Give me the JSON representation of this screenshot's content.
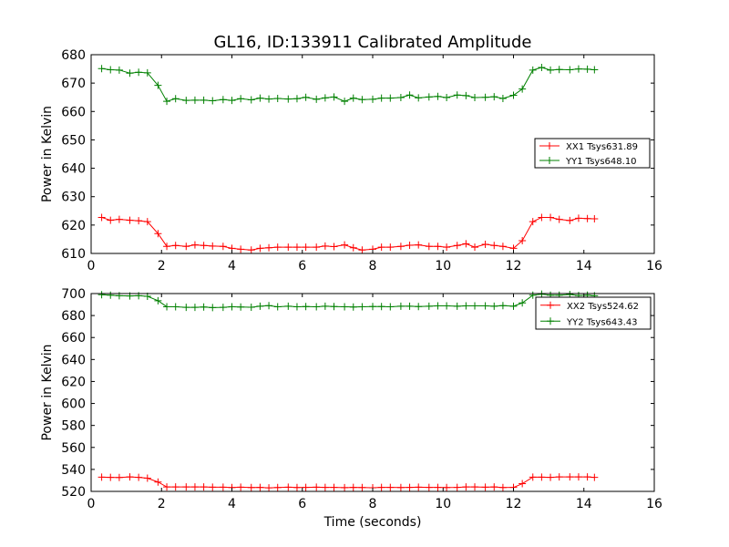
{
  "chart_data": [
    {
      "type": "line",
      "title": "GL16, ID:133911 Calibrated Amplitude",
      "xlabel": "",
      "ylabel": "Power in Kelvin",
      "xlim": [
        0,
        16
      ],
      "ylim": [
        610,
        680
      ],
      "xticks": [
        "0",
        "2",
        "4",
        "6",
        "8",
        "10",
        "12",
        "14",
        "16"
      ],
      "yticks": [
        "610",
        "620",
        "630",
        "640",
        "650",
        "660",
        "670",
        "680"
      ],
      "legend_position": "center-right",
      "x": [
        0.3,
        0.55,
        0.8,
        1.1,
        1.35,
        1.6,
        1.9,
        2.15,
        2.4,
        2.7,
        2.95,
        3.2,
        3.45,
        3.75,
        4.0,
        4.25,
        4.55,
        4.8,
        5.05,
        5.3,
        5.6,
        5.85,
        6.1,
        6.4,
        6.65,
        6.9,
        7.2,
        7.45,
        7.7,
        8.0,
        8.25,
        8.5,
        8.8,
        9.05,
        9.3,
        9.6,
        9.85,
        10.1,
        10.4,
        10.65,
        10.9,
        11.2,
        11.45,
        11.7,
        12.0,
        12.25,
        12.55,
        12.8,
        13.05,
        13.3,
        13.6,
        13.85,
        14.1,
        14.3
      ],
      "series": [
        {
          "name": "XX1 Tsys631.89",
          "color": "#ff0000",
          "values": [
            622.7,
            621.7,
            622.0,
            621.7,
            621.5,
            621.2,
            617.0,
            612.5,
            612.8,
            612.5,
            613.0,
            612.8,
            612.6,
            612.5,
            611.8,
            611.5,
            611.2,
            611.8,
            612.0,
            612.2,
            612.2,
            612.2,
            612.2,
            612.2,
            612.6,
            612.4,
            613.0,
            612.0,
            611.2,
            611.5,
            612.2,
            612.2,
            612.5,
            612.9,
            613.0,
            612.5,
            612.5,
            612.2,
            612.8,
            613.4,
            612.2,
            613.2,
            612.8,
            612.5,
            611.8,
            614.5,
            621.2,
            622.7,
            622.7,
            622.0,
            621.6,
            622.4,
            622.3,
            622.2
          ]
        },
        {
          "name": "YY1 Tsys648.10",
          "color": "#008000",
          "values": [
            675.1,
            674.7,
            674.6,
            673.5,
            673.8,
            673.6,
            669.2,
            663.6,
            664.5,
            663.9,
            664.0,
            664.0,
            663.8,
            664.2,
            663.9,
            664.5,
            664.1,
            664.7,
            664.4,
            664.6,
            664.4,
            664.5,
            665.0,
            664.3,
            664.8,
            665.1,
            663.6,
            664.7,
            664.2,
            664.3,
            664.7,
            664.7,
            664.9,
            665.8,
            664.8,
            665.1,
            665.3,
            664.9,
            665.8,
            665.6,
            664.9,
            665.0,
            665.2,
            664.6,
            665.7,
            667.9,
            674.6,
            675.5,
            674.6,
            674.8,
            674.7,
            675.0,
            674.9,
            674.7
          ]
        }
      ]
    },
    {
      "type": "line",
      "title": "",
      "xlabel": "Time (seconds)",
      "ylabel": "Power in Kelvin",
      "xlim": [
        0,
        16
      ],
      "ylim": [
        520,
        700
      ],
      "xticks": [
        "0",
        "2",
        "4",
        "6",
        "8",
        "10",
        "12",
        "14",
        "16"
      ],
      "yticks": [
        "520",
        "540",
        "560",
        "580",
        "600",
        "620",
        "640",
        "660",
        "680",
        "700"
      ],
      "legend_position": "top-right",
      "x": [
        0.3,
        0.55,
        0.8,
        1.1,
        1.35,
        1.6,
        1.9,
        2.15,
        2.4,
        2.7,
        2.95,
        3.2,
        3.45,
        3.75,
        4.0,
        4.25,
        4.55,
        4.8,
        5.05,
        5.3,
        5.6,
        5.85,
        6.1,
        6.4,
        6.65,
        6.9,
        7.2,
        7.45,
        7.7,
        8.0,
        8.25,
        8.5,
        8.8,
        9.05,
        9.3,
        9.6,
        9.85,
        10.1,
        10.4,
        10.65,
        10.9,
        11.2,
        11.45,
        11.7,
        12.0,
        12.25,
        12.55,
        12.8,
        13.05,
        13.3,
        13.6,
        13.85,
        14.1,
        14.3
      ],
      "series": [
        {
          "name": "XX2 Tsys524.62",
          "color": "#ff0000",
          "values": [
            533.0,
            532.8,
            532.6,
            533.2,
            532.8,
            532.0,
            528.5,
            524.0,
            524.0,
            524.0,
            524.0,
            524.0,
            523.8,
            523.8,
            523.5,
            523.8,
            523.5,
            523.6,
            523.2,
            523.5,
            523.8,
            523.5,
            523.6,
            523.8,
            523.6,
            523.6,
            523.4,
            523.6,
            523.5,
            523.3,
            523.6,
            523.6,
            523.5,
            523.6,
            523.8,
            523.6,
            523.6,
            523.5,
            523.6,
            524.0,
            524.0,
            523.8,
            524.0,
            523.5,
            523.6,
            527.0,
            533.0,
            533.0,
            532.8,
            533.2,
            533.2,
            533.2,
            533.2,
            532.8
          ]
        },
        {
          "name": "YY2 Tsys643.43",
          "color": "#008000",
          "values": [
            699.0,
            698.5,
            698.0,
            697.8,
            698.0,
            697.5,
            693.5,
            688.0,
            688.0,
            687.5,
            687.5,
            687.8,
            687.2,
            687.5,
            688.0,
            687.8,
            687.6,
            688.5,
            689.0,
            688.0,
            688.5,
            688.0,
            688.2,
            688.0,
            688.5,
            688.2,
            688.0,
            687.8,
            688.0,
            688.2,
            688.2,
            688.0,
            688.5,
            688.5,
            688.2,
            688.5,
            688.8,
            688.8,
            688.5,
            688.8,
            688.8,
            688.8,
            688.5,
            689.0,
            688.5,
            691.5,
            698.5,
            699.5,
            698.5,
            698.5,
            699.2,
            698.2,
            698.5,
            698.0
          ]
        }
      ]
    }
  ]
}
